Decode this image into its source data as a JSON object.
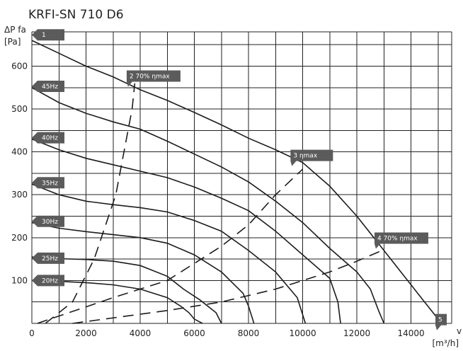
{
  "chart_data": {
    "type": "line",
    "title": "KRFI-SN 710 D6",
    "ylabel_line1": "ΔP fa",
    "ylabel_line2": "[Pa]",
    "xlabel_line1": "v",
    "xlabel_line2": "[m³/h]",
    "xlim": [
      0,
      15500
    ],
    "ylim": [
      0,
      680
    ],
    "grid": true,
    "x_ticks": [
      {
        "value": 0,
        "label": "0"
      },
      {
        "value": 2000,
        "label": "2000"
      },
      {
        "value": 4000,
        "label": "4000"
      },
      {
        "value": 6000,
        "label": "6000"
      },
      {
        "value": 8000,
        "label": "8000"
      },
      {
        "value": 10000,
        "label": "10000"
      },
      {
        "value": 12000,
        "label": "12000"
      },
      {
        "value": 14000,
        "label": "14000"
      }
    ],
    "y_ticks": [
      {
        "value": 100,
        "label": "100"
      },
      {
        "value": 200,
        "label": "200"
      },
      {
        "value": 300,
        "label": "300"
      },
      {
        "value": 400,
        "label": "400"
      },
      {
        "value": 500,
        "label": "500"
      },
      {
        "value": 600,
        "label": "600"
      }
    ],
    "series": [
      {
        "name": "1",
        "points": [
          [
            0,
            660
          ],
          [
            1000,
            630
          ],
          [
            2000,
            600
          ],
          [
            3000,
            575
          ],
          [
            4000,
            545
          ],
          [
            5000,
            520
          ],
          [
            6000,
            492
          ],
          [
            7000,
            463
          ],
          [
            8000,
            432
          ],
          [
            9000,
            405
          ],
          [
            10000,
            375
          ],
          [
            11000,
            320
          ],
          [
            12000,
            250
          ],
          [
            13000,
            170
          ],
          [
            14000,
            90
          ],
          [
            14500,
            50
          ],
          [
            15000,
            10
          ]
        ]
      },
      {
        "name": "45Hz",
        "points": [
          [
            0,
            550
          ],
          [
            1000,
            515
          ],
          [
            2000,
            490
          ],
          [
            3000,
            470
          ],
          [
            4000,
            453
          ],
          [
            5000,
            425
          ],
          [
            6000,
            395
          ],
          [
            7000,
            365
          ],
          [
            8000,
            330
          ],
          [
            9000,
            285
          ],
          [
            10000,
            235
          ],
          [
            11000,
            175
          ],
          [
            12000,
            120
          ],
          [
            12500,
            80
          ],
          [
            12800,
            30
          ],
          [
            13000,
            0
          ]
        ]
      },
      {
        "name": "40Hz",
        "points": [
          [
            0,
            430
          ],
          [
            1000,
            405
          ],
          [
            2000,
            385
          ],
          [
            3000,
            370
          ],
          [
            4000,
            355
          ],
          [
            5000,
            340
          ],
          [
            6000,
            318
          ],
          [
            7000,
            292
          ],
          [
            8000,
            263
          ],
          [
            9000,
            215
          ],
          [
            10000,
            160
          ],
          [
            11000,
            105
          ],
          [
            11300,
            50
          ],
          [
            11400,
            0
          ]
        ]
      },
      {
        "name": "35Hz",
        "points": [
          [
            0,
            325
          ],
          [
            1000,
            300
          ],
          [
            2000,
            285
          ],
          [
            3000,
            277
          ],
          [
            4000,
            270
          ],
          [
            5000,
            260
          ],
          [
            6000,
            240
          ],
          [
            7000,
            215
          ],
          [
            8000,
            170
          ],
          [
            9000,
            120
          ],
          [
            9800,
            60
          ],
          [
            10100,
            0
          ]
        ]
      },
      {
        "name": "30Hz",
        "points": [
          [
            0,
            235
          ],
          [
            1000,
            222
          ],
          [
            2000,
            214
          ],
          [
            3000,
            207
          ],
          [
            4000,
            200
          ],
          [
            5000,
            187
          ],
          [
            6000,
            160
          ],
          [
            7000,
            120
          ],
          [
            7800,
            70
          ],
          [
            8000,
            40
          ],
          [
            8200,
            0
          ]
        ]
      },
      {
        "name": "25Hz",
        "points": [
          [
            0,
            155
          ],
          [
            1000,
            151
          ],
          [
            2000,
            149
          ],
          [
            3000,
            145
          ],
          [
            4000,
            135
          ],
          [
            5000,
            110
          ],
          [
            5600,
            80
          ],
          [
            6200,
            55
          ],
          [
            6800,
            25
          ],
          [
            7000,
            0
          ]
        ]
      },
      {
        "name": "20Hz",
        "points": [
          [
            0,
            100
          ],
          [
            1000,
            98
          ],
          [
            2000,
            95
          ],
          [
            3000,
            90
          ],
          [
            4000,
            80
          ],
          [
            5000,
            60
          ],
          [
            5500,
            40
          ],
          [
            5800,
            25
          ],
          [
            6000,
            10
          ],
          [
            6300,
            0
          ]
        ]
      }
    ],
    "system_lines": [
      {
        "name": "2",
        "points": [
          [
            500,
            0
          ],
          [
            1500,
            50
          ],
          [
            2300,
            150
          ],
          [
            3100,
            300
          ],
          [
            3400,
            400
          ],
          [
            3700,
            500
          ],
          [
            3800,
            560
          ]
        ]
      },
      {
        "name": "3",
        "points": [
          [
            200,
            0
          ],
          [
            3000,
            60
          ],
          [
            5000,
            100
          ],
          [
            7000,
            180
          ],
          [
            8000,
            230
          ],
          [
            9000,
            300
          ],
          [
            10000,
            360
          ]
        ]
      },
      {
        "name": "4",
        "points": [
          [
            1500,
            0
          ],
          [
            5000,
            30
          ],
          [
            7000,
            50
          ],
          [
            9000,
            80
          ],
          [
            11000,
            120
          ],
          [
            12000,
            145
          ],
          [
            13000,
            172
          ]
        ]
      }
    ],
    "tags": [
      {
        "id": "tag-1",
        "text": "1",
        "x": 0,
        "y": 673,
        "dir": "left",
        "w": 46
      },
      {
        "id": "tag-45",
        "text": "45Hz",
        "x": 0,
        "y": 553,
        "dir": "left",
        "w": 46
      },
      {
        "id": "tag-40",
        "text": "40Hz",
        "x": 0,
        "y": 433,
        "dir": "left",
        "w": 46
      },
      {
        "id": "tag-35",
        "text": "35Hz",
        "x": 0,
        "y": 328,
        "dir": "left",
        "w": 46
      },
      {
        "id": "tag-30",
        "text": "30Hz",
        "x": 0,
        "y": 238,
        "dir": "left",
        "w": 46
      },
      {
        "id": "tag-25",
        "text": "25Hz",
        "x": 0,
        "y": 152,
        "dir": "left",
        "w": 46
      },
      {
        "id": "tag-20",
        "text": "20Hz",
        "x": 0,
        "y": 100,
        "dir": "left",
        "w": 46
      },
      {
        "id": "tag-2",
        "text": "2   70% ηmax",
        "x": 3500,
        "y": 590,
        "dir": "down",
        "w": 76
      },
      {
        "id": "tag-3",
        "text": "3     ηmax",
        "x": 9550,
        "y": 405,
        "dir": "down",
        "w": 60
      },
      {
        "id": "tag-4",
        "text": "4  70% ηmax",
        "x": 12650,
        "y": 212,
        "dir": "down",
        "w": 76
      },
      {
        "id": "tag-5",
        "text": "5",
        "x": 14900,
        "y": 22,
        "dir": "down",
        "w": 16
      }
    ]
  }
}
